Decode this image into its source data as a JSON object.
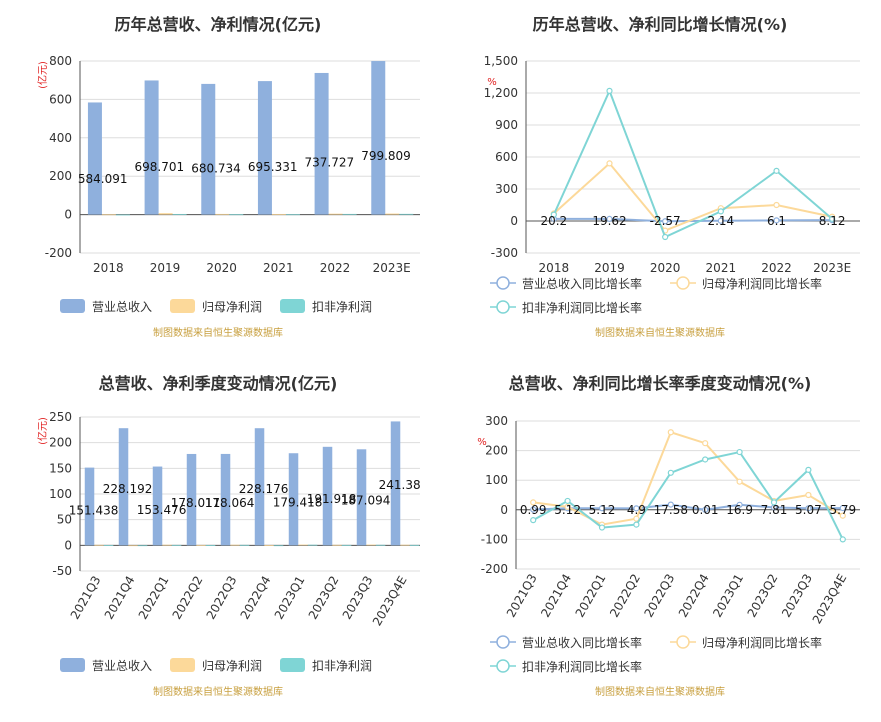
{
  "colors": {
    "revenue": "#8fb0dd",
    "net_profit": "#fcd99a",
    "deducted_profit": "#7fd5d5",
    "grid": "#dddddd",
    "axis": "#555555",
    "unit": "#e02020",
    "source": "#c8a040"
  },
  "source_note": "制图数据来自恒生聚源数据库",
  "chart_data": [
    {
      "id": "annual_amount",
      "type": "bar",
      "title": "历年总营收、净利情况(亿元)",
      "ylabel": "(亿元)",
      "ylim": [
        -200,
        800
      ],
      "yticks": [
        "-200",
        "0",
        "200",
        "400",
        "600",
        "800"
      ],
      "ytick_values": [
        -200,
        0,
        200,
        400,
        600,
        800
      ],
      "categories": [
        "2018",
        "2019",
        "2020",
        "2021",
        "2022",
        "2023E"
      ],
      "series": [
        {
          "name": "营业总收入",
          "values": [
            584.091,
            698.701,
            680.734,
            695.331,
            737.727,
            799.809
          ]
        },
        {
          "name": "归母净利润",
          "values": [
            1.2,
            7.5,
            3.5,
            3.2,
            4.8,
            5.4
          ]
        },
        {
          "name": "扣非净利润",
          "values": [
            -0.8,
            3.2,
            1.5,
            1.4,
            3.5,
            3.8
          ]
        }
      ],
      "labels": [
        "584.091",
        "698.701",
        "680.734",
        "695.331",
        "737.727",
        "799.809"
      ],
      "legend_position": "bottom"
    },
    {
      "id": "annual_growth",
      "type": "line",
      "title": "历年总营收、净利同比增长情况(%)",
      "ylabel": "%",
      "ylim": [
        -300,
        1500
      ],
      "yticks": [
        "-300",
        "0",
        "300",
        "600",
        "900",
        "1,200",
        "1,500"
      ],
      "ytick_values": [
        -300,
        0,
        300,
        600,
        900,
        1200,
        1500
      ],
      "categories": [
        "2018",
        "2019",
        "2020",
        "2021",
        "2022",
        "2023E"
      ],
      "series": [
        {
          "name": "营业总收入同比增长率",
          "values": [
            20.2,
            19.62,
            -2.57,
            2.14,
            6.1,
            8.12
          ]
        },
        {
          "name": "归母净利润同比增长率",
          "values": [
            70,
            540,
            -90,
            120,
            150,
            40
          ]
        },
        {
          "name": "扣非净利润同比增长率",
          "values": [
            60,
            1220,
            -150,
            90,
            470,
            20
          ]
        }
      ],
      "labels": [
        "20.2",
        "19.62",
        "-2.57",
        "2.14",
        "6.1",
        "8.12"
      ],
      "legend_position": "bottom"
    },
    {
      "id": "quarterly_amount",
      "type": "bar",
      "title": "总营收、净利季度变动情况(亿元)",
      "ylabel": "(亿元)",
      "ylim": [
        -50,
        250
      ],
      "yticks": [
        "-50",
        "0",
        "50",
        "100",
        "150",
        "200",
        "250"
      ],
      "ytick_values": [
        -50,
        0,
        50,
        100,
        150,
        200,
        250
      ],
      "categories": [
        "2021Q3",
        "2021Q4",
        "2022Q1",
        "2022Q2",
        "2022Q3",
        "2022Q4",
        "2023Q1",
        "2023Q2",
        "2023Q3",
        "2023Q4E"
      ],
      "series": [
        {
          "name": "营业总收入",
          "values": [
            151.438,
            228.192,
            153.476,
            178.011,
            178.064,
            228.176,
            179.418,
            191.918,
            187.094,
            241.38
          ]
        },
        {
          "name": "归母净利润",
          "values": [
            1.0,
            -0.5,
            1.2,
            0.8,
            1.2,
            0.4,
            1.5,
            1.0,
            1.5,
            1.2
          ]
        },
        {
          "name": "扣非净利润",
          "values": [
            0.6,
            -1.5,
            0.8,
            0.5,
            0.9,
            -0.6,
            1.2,
            0.8,
            1.0,
            0.8
          ]
        }
      ],
      "labels": [
        "151.438",
        "228.192",
        "153.476",
        "178.011",
        "178.064",
        "228.176",
        "179.418",
        "191.918",
        "187.094",
        "241.38"
      ],
      "legend_position": "bottom"
    },
    {
      "id": "quarterly_growth",
      "type": "line",
      "title": "总营收、净利同比增长率季度变动情况(%)",
      "ylabel": "%",
      "ylim": [
        -200,
        300
      ],
      "yticks": [
        "-200",
        "-100",
        "0",
        "100",
        "200",
        "300"
      ],
      "ytick_values": [
        -200,
        -100,
        0,
        100,
        200,
        300
      ],
      "categories": [
        "2021Q3",
        "2021Q4",
        "2022Q1",
        "2022Q2",
        "2022Q3",
        "2022Q4",
        "2023Q1",
        "2023Q2",
        "2023Q3",
        "2023Q4E"
      ],
      "series": [
        {
          "name": "营业总收入同比增长率",
          "values": [
            0.99,
            5.12,
            5.12,
            4.9,
            17.58,
            0.01,
            16.9,
            7.81,
            5.07,
            5.79
          ]
        },
        {
          "name": "归母净利润同比增长率",
          "values": [
            25,
            10,
            -50,
            -30,
            262,
            225,
            95,
            30,
            50,
            -20
          ]
        },
        {
          "name": "扣非净利润同比增长率",
          "values": [
            -35,
            30,
            -60,
            -50,
            125,
            170,
            195,
            25,
            135,
            -100
          ]
        }
      ],
      "labels": [
        "0.99",
        "5.12",
        "5.12",
        "4.9",
        "17.58",
        "0.01",
        "16.9",
        "7.81",
        "5.07",
        "5.79"
      ],
      "legend_position": "bottom"
    }
  ]
}
